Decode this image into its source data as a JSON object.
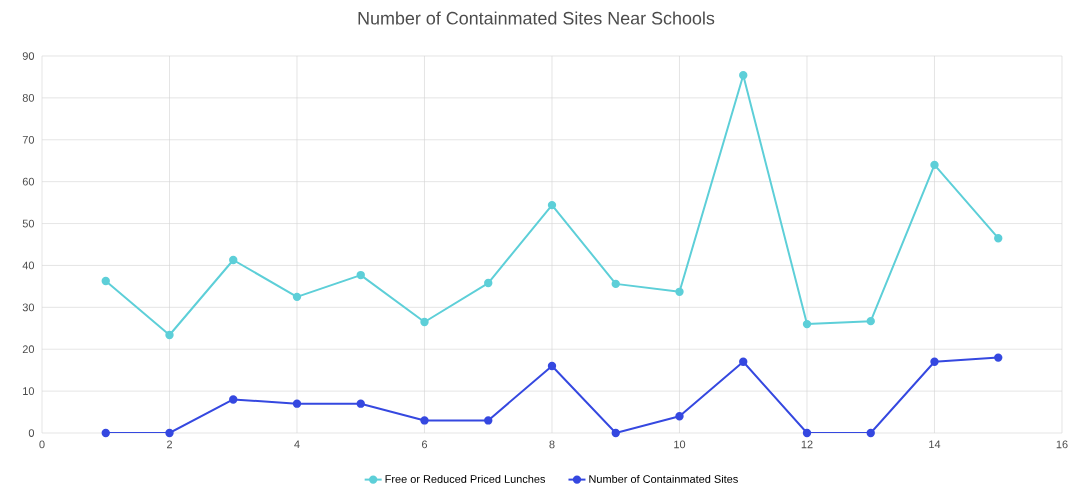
{
  "chart_data": {
    "type": "line",
    "title": "Number of Containmated Sites Near Schools",
    "x": [
      1,
      2,
      3,
      4,
      5,
      6,
      7,
      8,
      9,
      10,
      11,
      12,
      13,
      14,
      15
    ],
    "series": [
      {
        "name": "Free or Reduced Priced Lunches",
        "color": "#5dcfd8",
        "values": [
          36.3,
          23.4,
          41.3,
          32.5,
          37.7,
          26.5,
          35.8,
          54.4,
          35.6,
          33.7,
          85.4,
          26.0,
          26.7,
          64.0,
          46.5
        ]
      },
      {
        "name": "Number of Containmated Sites",
        "color": "#3548e0",
        "values": [
          0,
          0,
          8,
          7,
          7,
          3,
          3,
          16,
          0,
          4,
          17,
          0,
          0,
          17,
          18
        ]
      }
    ],
    "xlim": [
      0,
      16
    ],
    "xticks": [
      0,
      2,
      4,
      6,
      8,
      10,
      12,
      14,
      16
    ],
    "ylim": [
      0,
      90
    ],
    "yticks": [
      0,
      10,
      20,
      30,
      40,
      50,
      60,
      70,
      80,
      90
    ],
    "grid": true,
    "legend": "bottom",
    "marker": "circle",
    "line_style": "solid"
  }
}
